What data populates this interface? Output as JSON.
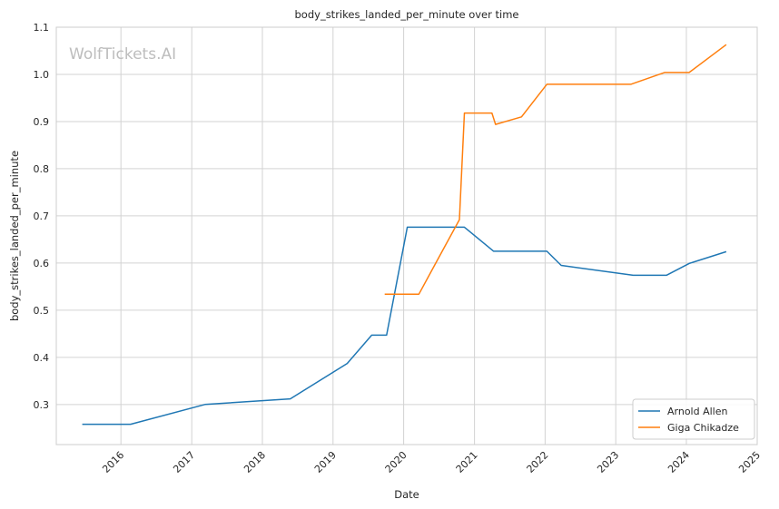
{
  "chart_data": {
    "type": "line",
    "title": "body_strikes_landed_per_minute over time",
    "xlabel": "Date",
    "ylabel": "body_strikes_landed_per_minute",
    "watermark": "WolfTickets.AI",
    "grid": true,
    "legend_position": "bottom-right",
    "xlim": [
      "2015-02-01",
      "2025-01-01"
    ],
    "ylim": [
      0.215,
      1.1
    ],
    "x_ticks": [
      "2016",
      "2017",
      "2018",
      "2019",
      "2020",
      "2021",
      "2022",
      "2023",
      "2024",
      "2025"
    ],
    "y_ticks": [
      "0.3",
      "0.4",
      "0.5",
      "0.6",
      "0.7",
      "0.8",
      "0.9",
      "1.0",
      "1.1"
    ],
    "series": [
      {
        "name": "Arnold Allen",
        "color": "#1f77b4",
        "points": [
          {
            "x": "2015-06-15",
            "y": 0.258
          },
          {
            "x": "2016-02-20",
            "y": 0.258
          },
          {
            "x": "2017-03-10",
            "y": 0.3
          },
          {
            "x": "2018-05-25",
            "y": 0.312
          },
          {
            "x": "2019-03-15",
            "y": 0.387
          },
          {
            "x": "2019-07-20",
            "y": 0.447
          },
          {
            "x": "2019-10-05",
            "y": 0.447
          },
          {
            "x": "2020-01-20",
            "y": 0.676
          },
          {
            "x": "2020-11-10",
            "y": 0.676
          },
          {
            "x": "2021-04-10",
            "y": 0.625
          },
          {
            "x": "2022-01-10",
            "y": 0.625
          },
          {
            "x": "2022-03-25",
            "y": 0.595
          },
          {
            "x": "2023-04-01",
            "y": 0.574
          },
          {
            "x": "2023-09-20",
            "y": 0.574
          },
          {
            "x": "2024-01-15",
            "y": 0.599
          },
          {
            "x": "2024-07-25",
            "y": 0.624
          }
        ]
      },
      {
        "name": "Giga Chikadze",
        "color": "#ff7f0e",
        "points": [
          {
            "x": "2019-09-25",
            "y": 0.534
          },
          {
            "x": "2020-03-20",
            "y": 0.534
          },
          {
            "x": "2020-06-15",
            "y": 0.6
          },
          {
            "x": "2020-10-15",
            "y": 0.692
          },
          {
            "x": "2020-11-10",
            "y": 0.918
          },
          {
            "x": "2021-04-01",
            "y": 0.918
          },
          {
            "x": "2021-04-20",
            "y": 0.894
          },
          {
            "x": "2021-09-01",
            "y": 0.91
          },
          {
            "x": "2022-01-10",
            "y": 0.979
          },
          {
            "x": "2023-03-20",
            "y": 0.979
          },
          {
            "x": "2023-09-10",
            "y": 1.004
          },
          {
            "x": "2024-01-15",
            "y": 1.004
          },
          {
            "x": "2024-07-25",
            "y": 1.063
          }
        ]
      }
    ]
  }
}
